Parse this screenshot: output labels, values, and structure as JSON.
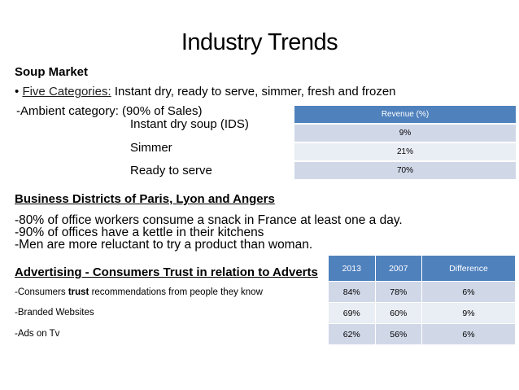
{
  "title": "Industry Trends",
  "soup": {
    "heading": "Soup Market",
    "bullet": "•",
    "five_label": "Five Categories:",
    "five_text": " Instant dry, ready to serve, simmer, fresh and frozen",
    "ambient": "-Ambient category: (90% of Sales)",
    "items": [
      "Instant dry soup (IDS)",
      "Simmer",
      "Ready to serve"
    ]
  },
  "revenue_table": {
    "header": "Revenue (%)",
    "values": [
      "9%",
      "21%",
      "70%"
    ]
  },
  "business": {
    "heading": "Business Districts of Paris, Lyon and Angers",
    "lines": [
      "-80% of office workers consume a snack in France at least one a day.",
      "-90% of offices have a kettle in their kitchens",
      "-Men are more reluctant to try a product than woman."
    ]
  },
  "advertising": {
    "heading": "Advertising - Consumers Trust in relation to Adverts",
    "row1_pre": "-Consumers ",
    "row1_bold": "trust",
    "row1_post": " recommendations from people they know",
    "row2": "-Branded Websites",
    "row3": "-Ads on Tv"
  },
  "trust_table": {
    "headers": [
      "2013",
      "2007",
      "Difference"
    ],
    "rows": [
      [
        "84%",
        "78%",
        "6%"
      ],
      [
        "69%",
        "60%",
        "9%"
      ],
      [
        "62%",
        "56%",
        "6%"
      ]
    ]
  }
}
